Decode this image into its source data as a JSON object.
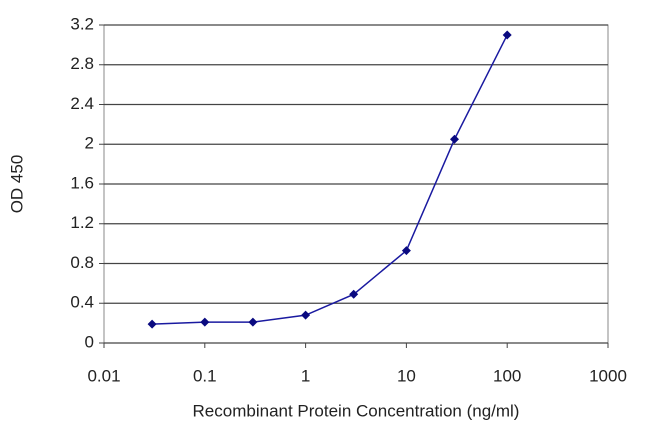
{
  "chart_data": {
    "type": "line",
    "x_label": "Recombinant Protein Concentration (ng/ml)",
    "y_label": "OD 450",
    "x_log": true,
    "x": [
      0.03,
      0.1,
      0.3,
      1,
      3,
      10,
      30,
      100
    ],
    "series": [
      {
        "name": null,
        "color": "#1a1aa0",
        "values": [
          0.19,
          0.21,
          0.21,
          0.28,
          0.49,
          0.93,
          2.05,
          3.1
        ]
      }
    ],
    "xlim": [
      0.01,
      1000
    ],
    "xticks": [
      0.01,
      0.1,
      1,
      10,
      100,
      1000
    ],
    "ylim": [
      0,
      3.2
    ],
    "yticks": [
      0,
      0.4,
      0.8,
      1.2,
      1.6,
      2,
      2.4,
      2.8,
      3.2
    ],
    "grid": true
  }
}
